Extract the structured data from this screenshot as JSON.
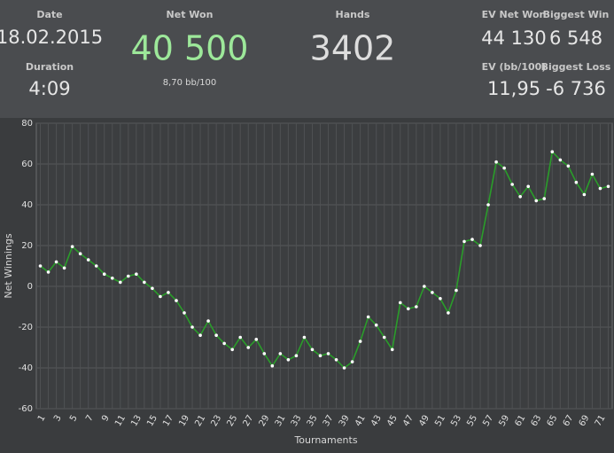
{
  "header": {
    "date": {
      "label": "Date",
      "value": "18.02.2015"
    },
    "duration": {
      "label": "Duration",
      "value": "4:09"
    },
    "net_won": {
      "label": "Net Won",
      "value": "40 500",
      "rate": "8,70 bb/100"
    },
    "hands": {
      "label": "Hands",
      "value": "3402"
    },
    "ev_net_won": {
      "label": "EV Net Won",
      "value": "44 130"
    },
    "biggest_win": {
      "label": "Biggest Win",
      "value": "6 548"
    },
    "ev_bb": {
      "label": "EV (bb/100)",
      "value": "11,95"
    },
    "biggest_loss": {
      "label": "Biggest Loss",
      "value": "-6 736"
    }
  },
  "chart_data": {
    "type": "line",
    "x_label": "Tournaments",
    "y_label": "Net Winnings",
    "categories": [
      1,
      null,
      3,
      null,
      5,
      null,
      7,
      null,
      9,
      null,
      11,
      null,
      13,
      null,
      15,
      null,
      17,
      null,
      19,
      null,
      21,
      null,
      23,
      null,
      25,
      null,
      27,
      null,
      29,
      null,
      31,
      null,
      33,
      null,
      35,
      null,
      37,
      null,
      39,
      null,
      41,
      null,
      43,
      null,
      45,
      null,
      47,
      null,
      49,
      null,
      51,
      null,
      53,
      null,
      55,
      null,
      57,
      null,
      59,
      null,
      61,
      null,
      63,
      null,
      65,
      null,
      67,
      null,
      69,
      null,
      71,
      null
    ],
    "values": [
      10,
      7,
      12,
      9,
      19.5,
      16,
      13,
      10,
      6,
      4,
      2,
      5,
      6,
      2,
      -1,
      -5,
      -3,
      -7,
      -13,
      -20,
      -24,
      -17,
      -24,
      -28,
      -31,
      -25,
      -30,
      -26,
      -33,
      -39,
      -33,
      -36,
      -34,
      -25,
      -31,
      -34,
      -33,
      -36,
      -40,
      -37,
      -27,
      -15,
      -19,
      -25,
      -31,
      -8,
      -11,
      -10,
      0,
      -3,
      -6,
      -13,
      -2,
      22,
      23,
      20,
      40,
      61,
      58,
      50,
      44,
      49,
      42,
      43,
      66,
      62,
      59,
      51,
      45,
      55,
      48,
      49
    ],
    "color": "#2a9d2a",
    "marker_color": "#ffffff",
    "ylim": [
      -60,
      80
    ],
    "yticks": [
      -60,
      -40,
      -20,
      0,
      20,
      40,
      60,
      80
    ],
    "grid": true
  }
}
